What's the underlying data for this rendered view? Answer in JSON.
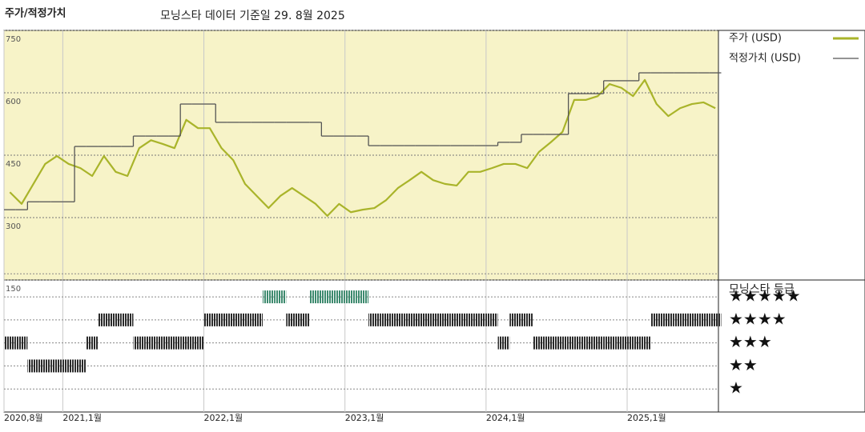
{
  "chart_data": [
    {
      "type": "line",
      "title": "주가/적정가치",
      "subtitle": "모닝스타 데이터 기준일 29. 8월 2025",
      "x": [
        "2020-08",
        "2020-09",
        "2020-10",
        "2020-11",
        "2020-12",
        "2021-01",
        "2021-02",
        "2021-03",
        "2021-04",
        "2021-05",
        "2021-06",
        "2021-07",
        "2021-08",
        "2021-09",
        "2021-10",
        "2021-11",
        "2021-12",
        "2022-01",
        "2022-02",
        "2022-03",
        "2022-04",
        "2022-05",
        "2022-06",
        "2022-07",
        "2022-08",
        "2022-09",
        "2022-10",
        "2022-11",
        "2022-12",
        "2023-01",
        "2023-02",
        "2023-03",
        "2023-04",
        "2023-05",
        "2023-06",
        "2023-07",
        "2023-08",
        "2023-09",
        "2023-10",
        "2023-11",
        "2023-12",
        "2024-01",
        "2024-02",
        "2024-03",
        "2024-04",
        "2024-05",
        "2024-06",
        "2024-07",
        "2024-08",
        "2024-09",
        "2024-10",
        "2024-11",
        "2024-12",
        "2025-01",
        "2025-02",
        "2025-03",
        "2025-04",
        "2025-05",
        "2025-06",
        "2025-07",
        "2025-08"
      ],
      "series": [
        {
          "name": "주가 (USD)",
          "color": "#a9b42a",
          "values": [
            361,
            333,
            381,
            429,
            448,
            429,
            419,
            400,
            448,
            410,
            400,
            467,
            486,
            477,
            467,
            535,
            515,
            515,
            467,
            438,
            381,
            352,
            323,
            352,
            371,
            352,
            333,
            304,
            333,
            313,
            319,
            323,
            342,
            371,
            390,
            410,
            390,
            381,
            377,
            410,
            410,
            419,
            429,
            429,
            419,
            458,
            481,
            506,
            583,
            583,
            592,
            621,
            612,
            592,
            631,
            573,
            544,
            563,
            573,
            577,
            563
          ]
        },
        {
          "name": "적정가치 (USD)",
          "color": "#555555",
          "step": true,
          "values": [
            319,
            319,
            338,
            338,
            338,
            338,
            471,
            471,
            471,
            471,
            471,
            496,
            496,
            496,
            496,
            573,
            573,
            573,
            529,
            529,
            529,
            529,
            529,
            529,
            529,
            529,
            529,
            496,
            496,
            496,
            496,
            473,
            473,
            473,
            473,
            473,
            473,
            473,
            473,
            473,
            473,
            473,
            481,
            481,
            500,
            500,
            500,
            500,
            598,
            598,
            598,
            629,
            629,
            629,
            648,
            648,
            648,
            648,
            648,
            648,
            648
          ]
        }
      ],
      "ylim": [
        150,
        750
      ],
      "yticks": [
        150,
        300,
        450,
        600,
        750
      ],
      "xticks": [
        {
          "value": "2020-08",
          "label": "2020,8월"
        },
        {
          "value": "2021-01",
          "label": "2021,1월"
        },
        {
          "value": "2022-01",
          "label": "2022,1월"
        },
        {
          "value": "2023-01",
          "label": "2023,1월"
        },
        {
          "value": "2024-01",
          "label": "2024,1월"
        },
        {
          "value": "2025-01",
          "label": "2025,1월"
        }
      ],
      "background": "#f7f3c8",
      "grid": true
    },
    {
      "type": "rating",
      "title": "모닝스타 등급",
      "values": [
        3,
        3,
        2,
        2,
        2,
        2,
        2,
        3,
        4,
        4,
        4,
        3,
        3,
        3,
        3,
        3,
        3,
        4,
        4,
        4,
        4,
        4,
        5,
        5,
        4,
        4,
        5,
        5,
        5,
        5,
        5,
        4,
        4,
        4,
        4,
        4,
        4,
        4,
        4,
        4,
        4,
        4,
        3,
        4,
        4,
        3,
        3,
        3,
        3,
        3,
        3,
        3,
        3,
        3,
        3,
        4,
        4,
        4,
        4,
        4,
        4
      ],
      "ylim": [
        0,
        6
      ],
      "yticks": [
        {
          "value": 5,
          "label": "★★★★★"
        },
        {
          "value": 4,
          "label": "★★★★"
        },
        {
          "value": 3,
          "label": "★★★"
        },
        {
          "value": 2,
          "label": "★★"
        },
        {
          "value": 1,
          "label": "★"
        }
      ],
      "color": "#2b2b2b",
      "top_color": "#3d8a6e"
    }
  ]
}
